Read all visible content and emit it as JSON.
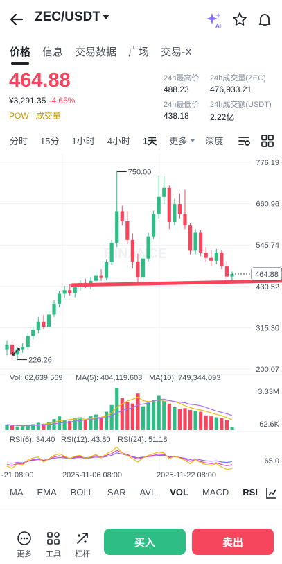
{
  "header": {
    "pair": "ZEC/USDT",
    "ai_badge": "AI"
  },
  "tabs": [
    {
      "label": "价格",
      "active": true
    },
    {
      "label": "信息",
      "active": false
    },
    {
      "label": "交易数据",
      "active": false
    },
    {
      "label": "广场",
      "active": false
    },
    {
      "label": "交易-X",
      "active": false
    }
  ],
  "ticker": {
    "price": "464.88",
    "price_cny": "¥3,291.35",
    "change_pct": "-4.65%",
    "tag_pow": "POW",
    "tag_volume": "成交量",
    "high_label": "24h最高价",
    "high_value": "488.23",
    "vol_zec_label": "24h成交量(ZEC)",
    "vol_zec_value": "476,933.21",
    "low_label": "24h最低价",
    "low_value": "438.18",
    "vol_usdt_label": "24h成交额(USDT)",
    "vol_usdt_value": "2.22亿"
  },
  "intervals": {
    "items": [
      {
        "label": "分时",
        "active": false
      },
      {
        "label": "15分",
        "active": false
      },
      {
        "label": "1小时",
        "active": false
      },
      {
        "label": "4小时",
        "active": false
      },
      {
        "label": "1天",
        "active": true
      },
      {
        "label": "更多",
        "active": false
      },
      {
        "label": "深度",
        "active": false
      }
    ]
  },
  "chart_data": {
    "type": "candlestick",
    "y_ticks": [
      "776.19",
      "660.96",
      "545.74",
      "430.52",
      "315.30",
      "200.07"
    ],
    "ylim": [
      200.07,
      776.19
    ],
    "x_tick_labels": [
      "-21 08:00",
      "2025-11-06 08:00",
      "2025-11-22 08:00"
    ],
    "max_label": "750.00",
    "min_label": "226.26",
    "last_price_label": "464.88",
    "candles": [
      {
        "o": 255,
        "h": 280,
        "l": 238,
        "c": 268
      },
      {
        "o": 268,
        "h": 276,
        "l": 228,
        "c": 240
      },
      {
        "o": 240,
        "h": 262,
        "l": 226,
        "c": 255
      },
      {
        "o": 255,
        "h": 272,
        "l": 245,
        "c": 262
      },
      {
        "o": 262,
        "h": 300,
        "l": 255,
        "c": 292
      },
      {
        "o": 292,
        "h": 318,
        "l": 282,
        "c": 310
      },
      {
        "o": 310,
        "h": 345,
        "l": 300,
        "c": 332
      },
      {
        "o": 332,
        "h": 350,
        "l": 312,
        "c": 318
      },
      {
        "o": 318,
        "h": 362,
        "l": 312,
        "c": 352
      },
      {
        "o": 352,
        "h": 392,
        "l": 345,
        "c": 382
      },
      {
        "o": 382,
        "h": 418,
        "l": 372,
        "c": 410
      },
      {
        "o": 410,
        "h": 432,
        "l": 398,
        "c": 420
      },
      {
        "o": 420,
        "h": 436,
        "l": 405,
        "c": 412
      },
      {
        "o": 412,
        "h": 438,
        "l": 400,
        "c": 428
      },
      {
        "o": 428,
        "h": 448,
        "l": 418,
        "c": 440
      },
      {
        "o": 440,
        "h": 452,
        "l": 426,
        "c": 432
      },
      {
        "o": 432,
        "h": 455,
        "l": 422,
        "c": 446
      },
      {
        "o": 446,
        "h": 470,
        "l": 436,
        "c": 460
      },
      {
        "o": 460,
        "h": 478,
        "l": 446,
        "c": 454
      },
      {
        "o": 454,
        "h": 505,
        "l": 448,
        "c": 498
      },
      {
        "o": 498,
        "h": 560,
        "l": 490,
        "c": 552
      },
      {
        "o": 552,
        "h": 750,
        "l": 540,
        "c": 640
      },
      {
        "o": 640,
        "h": 655,
        "l": 600,
        "c": 612
      },
      {
        "o": 612,
        "h": 640,
        "l": 548,
        "c": 560
      },
      {
        "o": 560,
        "h": 578,
        "l": 480,
        "c": 500
      },
      {
        "o": 500,
        "h": 522,
        "l": 440,
        "c": 455
      },
      {
        "o": 455,
        "h": 520,
        "l": 448,
        "c": 508
      },
      {
        "o": 508,
        "h": 580,
        "l": 500,
        "c": 570
      },
      {
        "o": 570,
        "h": 642,
        "l": 562,
        "c": 632
      },
      {
        "o": 632,
        "h": 740,
        "l": 620,
        "c": 680
      },
      {
        "o": 680,
        "h": 738,
        "l": 660,
        "c": 705
      },
      {
        "o": 705,
        "h": 712,
        "l": 590,
        "c": 610
      },
      {
        "o": 610,
        "h": 675,
        "l": 600,
        "c": 660
      },
      {
        "o": 660,
        "h": 690,
        "l": 620,
        "c": 632
      },
      {
        "o": 632,
        "h": 700,
        "l": 590,
        "c": 600
      },
      {
        "o": 600,
        "h": 608,
        "l": 520,
        "c": 530
      },
      {
        "o": 530,
        "h": 590,
        "l": 520,
        "c": 580
      },
      {
        "o": 580,
        "h": 588,
        "l": 515,
        "c": 525
      },
      {
        "o": 525,
        "h": 540,
        "l": 498,
        "c": 510
      },
      {
        "o": 510,
        "h": 530,
        "l": 488,
        "c": 502
      },
      {
        "o": 502,
        "h": 535,
        "l": 492,
        "c": 525
      },
      {
        "o": 525,
        "h": 532,
        "l": 478,
        "c": 486
      },
      {
        "o": 486,
        "h": 498,
        "l": 446,
        "c": 458
      },
      {
        "o": 458,
        "h": 472,
        "l": 440,
        "c": 464.88
      }
    ],
    "volume_title": "Vol: 62,639.569",
    "ma5_label": "MA(5): 404,119.603",
    "ma10_label": "MA(10): 749,344.093",
    "vol_ticks": [
      "3.33M",
      "62.6K"
    ],
    "volumes": [
      0.12,
      0.1,
      0.08,
      0.09,
      0.11,
      0.13,
      0.16,
      0.14,
      0.18,
      0.24,
      0.3,
      0.22,
      0.2,
      0.26,
      0.28,
      0.22,
      0.3,
      0.34,
      0.28,
      0.4,
      0.55,
      0.92,
      0.7,
      0.62,
      0.58,
      0.8,
      0.52,
      0.6,
      0.66,
      0.75,
      0.64,
      0.58,
      0.5,
      0.46,
      0.48,
      0.44,
      0.42,
      0.4,
      0.32,
      0.3,
      0.28,
      0.26,
      0.22,
      0.06
    ],
    "volume_up": [
      true,
      false,
      true,
      true,
      true,
      true,
      true,
      false,
      true,
      true,
      true,
      true,
      false,
      true,
      true,
      false,
      true,
      true,
      false,
      true,
      true,
      true,
      false,
      false,
      false,
      false,
      true,
      true,
      true,
      true,
      true,
      false,
      true,
      false,
      false,
      false,
      true,
      false,
      false,
      false,
      true,
      false,
      false,
      true
    ],
    "rsi6_label": "RSI(6): 34.40",
    "rsi12_label": "RSI(12): 43.80",
    "rsi24_label": "RSI(24): 51.18",
    "rsi_tick": "65.0",
    "rsi6": [
      40,
      35,
      45,
      42,
      55,
      60,
      62,
      50,
      58,
      66,
      70,
      64,
      58,
      64,
      66,
      58,
      63,
      68,
      60,
      70,
      76,
      86,
      72,
      66,
      58,
      50,
      60,
      66,
      70,
      74,
      72,
      58,
      64,
      60,
      54,
      46,
      56,
      48,
      44,
      42,
      46,
      38,
      32,
      34.4
    ],
    "rsi12": [
      44,
      42,
      46,
      45,
      52,
      56,
      58,
      54,
      57,
      62,
      65,
      62,
      59,
      62,
      63,
      60,
      62,
      65,
      62,
      66,
      70,
      78,
      72,
      68,
      62,
      57,
      61,
      64,
      66,
      69,
      68,
      61,
      63,
      61,
      57,
      52,
      56,
      51,
      48,
      46,
      48,
      44,
      41,
      43.8
    ],
    "rsi24": [
      48,
      47,
      49,
      48,
      52,
      54,
      56,
      54,
      56,
      59,
      61,
      60,
      58,
      60,
      61,
      59,
      60,
      62,
      61,
      63,
      66,
      72,
      69,
      66,
      63,
      60,
      62,
      63,
      64,
      66,
      66,
      62,
      63,
      61,
      59,
      56,
      58,
      55,
      53,
      52,
      53,
      50,
      49,
      51.18
    ]
  },
  "indicators": {
    "items": [
      {
        "label": "MA",
        "active": false
      },
      {
        "label": "EMA",
        "active": false
      },
      {
        "label": "BOLL",
        "active": false
      },
      {
        "label": "SAR",
        "active": false
      },
      {
        "label": "AVL",
        "active": false
      },
      {
        "label": "VOL",
        "active": true
      },
      {
        "label": "MACD",
        "active": false
      },
      {
        "label": "RSI",
        "active": true
      }
    ]
  },
  "bottom_bar": {
    "more": "更多",
    "tools": "工具",
    "leverage": "杠杆",
    "buy": "买入",
    "sell": "卖出"
  },
  "colors": {
    "up": "#2ebd85",
    "down": "#f6465d",
    "ma5": "#f0b90b",
    "ma10": "#a970ff",
    "rsi6": "#f0b90b",
    "rsi12": "#e33fa3",
    "rsi24": "#8a6cff",
    "buy_bg": "#2ebd85",
    "sell_bg": "#f6465d"
  }
}
